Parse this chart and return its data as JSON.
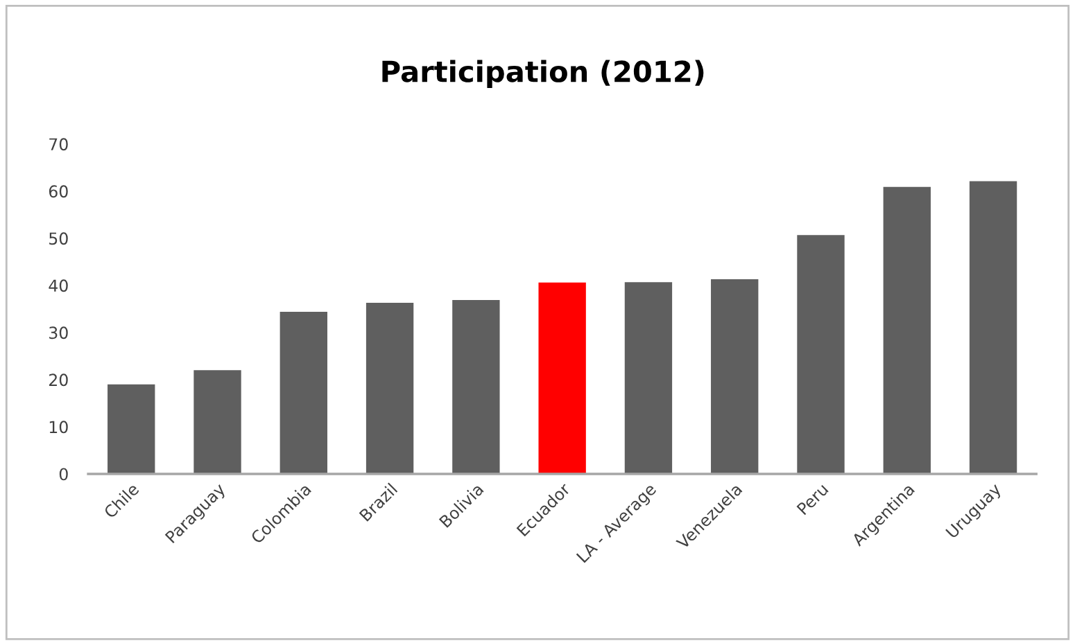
{
  "chart_data": {
    "type": "bar",
    "title": "Participation (2012)",
    "categories": [
      "Chile",
      "Paraguay",
      "Colombia",
      "Brazil",
      "Bolivia",
      "Ecuador",
      "LA - Average",
      "Venezuela",
      "Peru",
      "Argentina",
      "Uruguay"
    ],
    "values": [
      19,
      22,
      34.4,
      36.3,
      36.9,
      40.6,
      40.7,
      41.3,
      50.7,
      60.9,
      62.1
    ],
    "colors": [
      "#5f5f5f",
      "#5f5f5f",
      "#5f5f5f",
      "#5f5f5f",
      "#5f5f5f",
      "#ff0000",
      "#5f5f5f",
      "#5f5f5f",
      "#5f5f5f",
      "#5f5f5f",
      "#5f5f5f"
    ],
    "ylim": [
      0,
      70
    ],
    "yticks": [
      0,
      10,
      20,
      30,
      40,
      50,
      60,
      70
    ],
    "grid": false,
    "legend": false
  }
}
